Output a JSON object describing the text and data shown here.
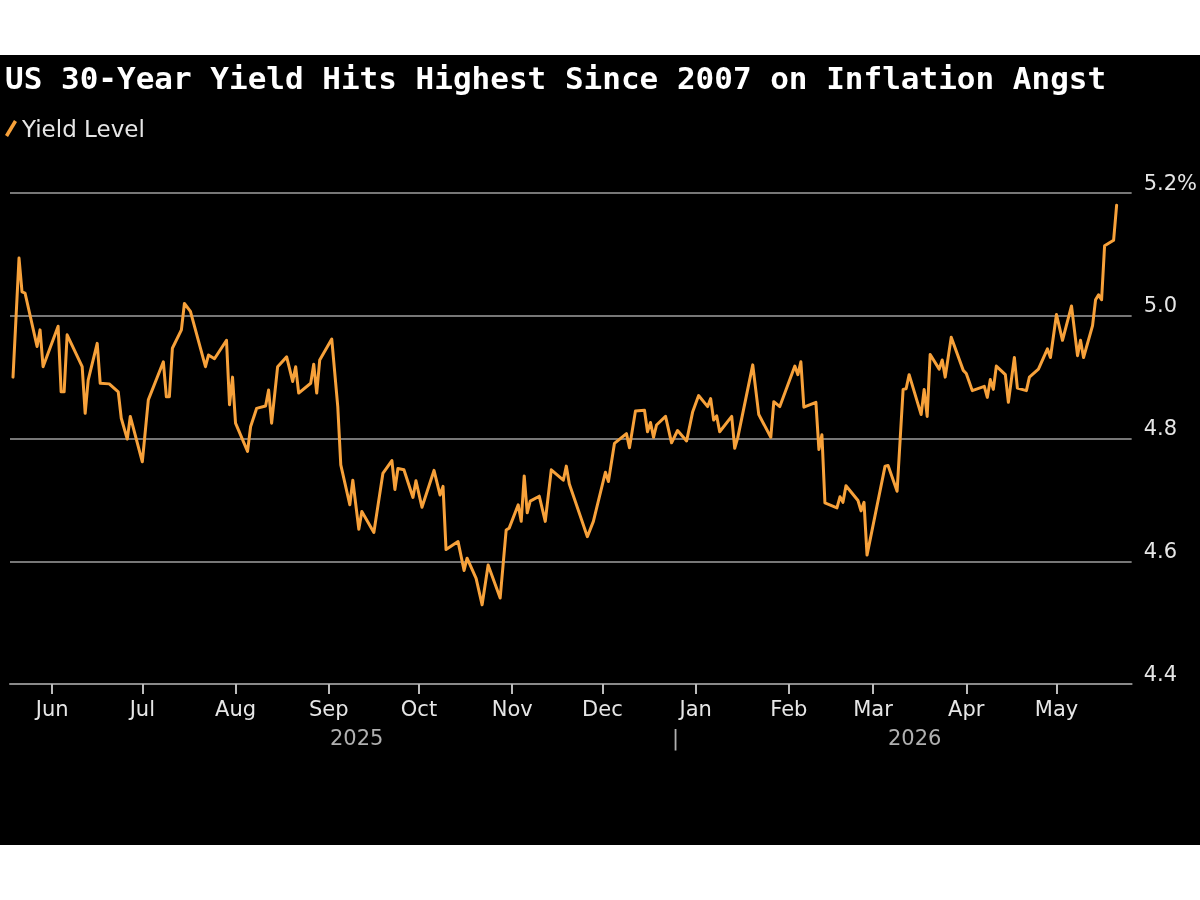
{
  "chart_data": {
    "type": "line",
    "title": "US 30-Year Yield Hits Highest Since 2007 on Inflation Angst",
    "x": [
      "2025-05-19",
      "2025-05-21",
      "2025-05-22",
      "2025-05-23",
      "2025-05-27",
      "2025-05-28",
      "2025-05-29",
      "2025-06-03",
      "2025-06-04",
      "2025-06-05",
      "2025-06-06",
      "2025-06-11",
      "2025-06-12",
      "2025-06-13",
      "2025-06-16",
      "2025-06-17",
      "2025-06-20",
      "2025-06-23",
      "2025-06-24",
      "2025-06-26",
      "2025-06-27",
      "2025-07-01",
      "2025-07-03",
      "2025-07-08",
      "2025-07-09",
      "2025-07-10",
      "2025-07-11",
      "2025-07-14",
      "2025-07-15",
      "2025-07-17",
      "2025-07-22",
      "2025-07-23",
      "2025-07-25",
      "2025-07-29",
      "2025-07-30",
      "2025-07-31",
      "2025-08-01",
      "2025-08-05",
      "2025-08-06",
      "2025-08-08",
      "2025-08-11",
      "2025-08-12",
      "2025-08-13",
      "2025-08-15",
      "2025-08-18",
      "2025-08-20",
      "2025-08-21",
      "2025-08-22",
      "2025-08-26",
      "2025-08-27",
      "2025-08-28",
      "2025-08-29",
      "2025-09-02",
      "2025-09-04",
      "2025-09-05",
      "2025-09-08",
      "2025-09-09",
      "2025-09-11",
      "2025-09-12",
      "2025-09-16",
      "2025-09-19",
      "2025-09-22",
      "2025-09-23",
      "2025-09-24",
      "2025-09-26",
      "2025-09-29",
      "2025-09-30",
      "2025-10-02",
      "2025-10-06",
      "2025-10-08",
      "2025-10-09",
      "2025-10-10",
      "2025-10-14",
      "2025-10-16",
      "2025-10-17",
      "2025-10-20",
      "2025-10-22",
      "2025-10-24",
      "2025-10-28",
      "2025-10-30",
      "2025-10-31",
      "2025-11-03",
      "2025-11-04",
      "2025-11-05",
      "2025-11-06",
      "2025-11-07",
      "2025-11-10",
      "2025-11-12",
      "2025-11-14",
      "2025-11-18",
      "2025-11-19",
      "2025-11-20",
      "2025-11-26",
      "2025-11-28",
      "2025-12-02",
      "2025-12-03",
      "2025-12-05",
      "2025-12-09",
      "2025-12-10",
      "2025-12-12",
      "2025-12-15",
      "2025-12-16",
      "2025-12-17",
      "2025-12-18",
      "2025-12-19",
      "2025-12-22",
      "2025-12-24",
      "2025-12-26",
      "2025-12-29",
      "2025-12-31",
      "2026-01-02",
      "2026-01-05",
      "2026-01-06",
      "2026-01-07",
      "2026-01-08",
      "2026-01-09",
      "2026-01-13",
      "2026-01-14",
      "2026-01-15",
      "2026-01-20",
      "2026-01-22",
      "2026-01-26",
      "2026-01-27",
      "2026-01-29",
      "2026-02-03",
      "2026-02-04",
      "2026-02-05",
      "2026-02-06",
      "2026-02-10",
      "2026-02-11",
      "2026-02-12",
      "2026-02-13",
      "2026-02-17",
      "2026-02-18",
      "2026-02-19",
      "2026-02-20",
      "2026-02-24",
      "2026-02-25",
      "2026-02-26",
      "2026-02-27",
      "2026-03-05",
      "2026-03-06",
      "2026-03-09",
      "2026-03-11",
      "2026-03-12",
      "2026-03-13",
      "2026-03-17",
      "2026-03-18",
      "2026-03-19",
      "2026-03-20",
      "2026-03-23",
      "2026-03-24",
      "2026-03-25",
      "2026-03-27",
      "2026-03-31",
      "2026-04-01",
      "2026-04-03",
      "2026-04-07",
      "2026-04-08",
      "2026-04-09",
      "2026-04-10",
      "2026-04-11",
      "2026-04-14",
      "2026-04-15",
      "2026-04-17",
      "2026-04-18",
      "2026-04-21",
      "2026-04-22",
      "2026-04-25",
      "2026-04-28",
      "2026-04-29",
      "2026-05-01",
      "2026-05-03",
      "2026-05-06",
      "2026-05-08",
      "2026-05-09",
      "2026-05-10",
      "2026-05-13",
      "2026-05-14",
      "2026-05-15",
      "2026-05-16",
      "2026-05-17",
      "2026-05-20",
      "2026-05-21"
    ],
    "series": [
      {
        "name": "Yield Level",
        "color": "#f7a13a",
        "values": [
          4.9,
          5.094,
          5.039,
          5.037,
          4.95,
          4.977,
          4.917,
          4.983,
          4.876,
          4.876,
          4.969,
          4.917,
          4.841,
          4.895,
          4.955,
          4.89,
          4.889,
          4.876,
          4.833,
          4.799,
          4.836,
          4.762,
          4.863,
          4.925,
          4.868,
          4.868,
          4.947,
          4.977,
          5.02,
          5.007,
          4.917,
          4.936,
          4.93,
          4.96,
          4.855,
          4.9,
          4.825,
          4.779,
          4.819,
          4.849,
          4.853,
          4.879,
          4.825,
          4.917,
          4.933,
          4.893,
          4.917,
          4.874,
          4.89,
          4.921,
          4.874,
          4.928,
          4.962,
          4.852,
          4.757,
          4.692,
          4.732,
          4.652,
          4.681,
          4.647,
          4.743,
          4.764,
          4.717,
          4.751,
          4.749,
          4.704,
          4.731,
          4.688,
          4.748,
          4.708,
          4.722,
          4.619,
          4.632,
          4.585,
          4.605,
          4.572,
          4.529,
          4.594,
          4.54,
          4.651,
          4.654,
          4.692,
          4.665,
          4.739,
          4.679,
          4.698,
          4.706,
          4.665,
          4.749,
          4.732,
          4.755,
          4.726,
          4.64,
          4.665,
          4.745,
          4.73,
          4.792,
          4.808,
          4.785,
          4.845,
          4.846,
          4.811,
          4.826,
          4.802,
          4.822,
          4.836,
          4.793,
          4.813,
          4.796,
          4.843,
          4.87,
          4.852,
          4.865,
          4.83,
          4.837,
          4.811,
          4.836,
          4.784,
          4.801,
          4.92,
          4.839,
          4.802,
          4.86,
          4.852,
          4.918,
          4.904,
          4.925,
          4.851,
          4.859,
          4.782,
          4.806,
          4.695,
          4.687,
          4.705,
          4.696,
          4.723,
          4.699,
          4.682,
          4.696,
          4.61,
          4.755,
          4.756,
          4.714,
          4.88,
          4.881,
          4.904,
          4.839,
          4.88,
          4.836,
          4.937,
          4.913,
          4.928,
          4.9,
          4.965,
          4.911,
          4.906,
          4.878,
          4.885,
          4.867,
          4.896,
          4.88,
          4.918,
          4.904,
          4.859,
          4.932,
          4.882,
          4.878,
          4.9,
          4.913,
          4.946,
          4.932,
          5.002,
          4.96,
          5.016,
          4.935,
          4.96,
          4.932,
          4.984,
          5.026,
          5.034,
          5.026,
          5.114,
          5.123,
          5.18
        ]
      }
    ],
    "xlim": [
      "2025-05-18",
      "2026-05-26"
    ],
    "xticks": [
      {
        "value": "2025-06-01",
        "label": "Jun"
      },
      {
        "value": "2025-07-01",
        "label": "Jul"
      },
      {
        "value": "2025-08-01",
        "label": "Aug"
      },
      {
        "value": "2025-09-01",
        "label": "Sep"
      },
      {
        "value": "2025-10-01",
        "label": "Oct"
      },
      {
        "value": "2025-11-01",
        "label": "Nov"
      },
      {
        "value": "2025-12-01",
        "label": "Dec"
      },
      {
        "value": "2026-01-01",
        "label": "Jan"
      },
      {
        "value": "2026-02-01",
        "label": "Feb"
      },
      {
        "value": "2026-03-01",
        "label": "Mar"
      },
      {
        "value": "2026-04-01",
        "label": "Apr"
      },
      {
        "value": "2026-05-01",
        "label": "May"
      }
    ],
    "ylim": [
      4.4,
      5.2
    ],
    "yticks": [
      4.4,
      4.6,
      4.8,
      {
        "value": 5.0,
        "label": "5.0"
      },
      {
        "value": 5.2,
        "label": "5.2%"
      }
    ],
    "annotations": [
      "2025",
      "|",
      "2026"
    ],
    "grid": "y",
    "legend": "top left",
    "marker": "none",
    "line_style": "solid"
  }
}
